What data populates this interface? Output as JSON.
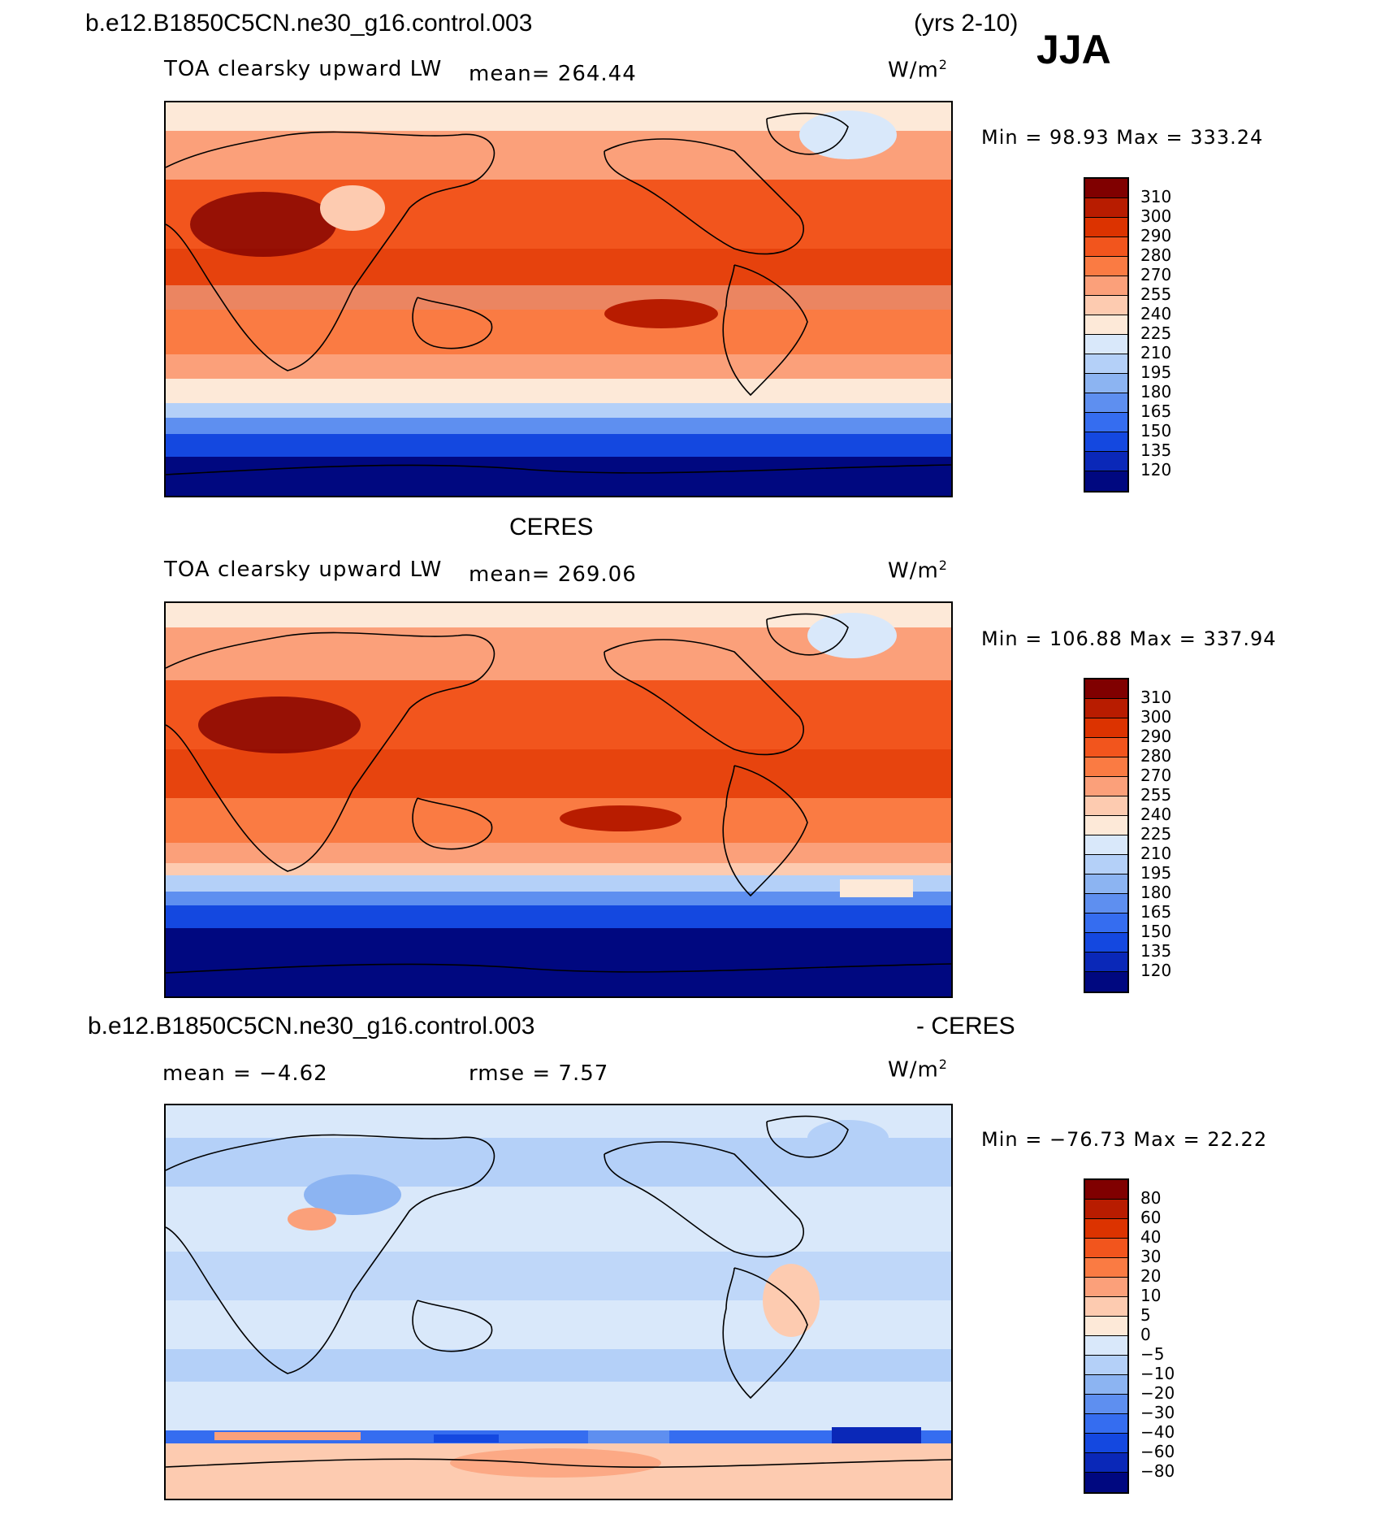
{
  "header": {
    "case_name": "b.e12.B1850C5CN.ne30_g16.control.003",
    "years": "(yrs 2-10)",
    "season": "JJA"
  },
  "panel1": {
    "title": "",
    "variable": "TOA clearsky upward LW",
    "mean_text": "mean= 264.44",
    "units": "W/m",
    "units_sup": "2",
    "minmax": "Min =   98.93 Max = 333.24",
    "colorbar": {
      "labels": [
        "310",
        "300",
        "290",
        "280",
        "270",
        "255",
        "240",
        "225",
        "210",
        "195",
        "180",
        "165",
        "150",
        "135",
        "120"
      ],
      "colors": [
        "#800000",
        "#b81c00",
        "#dc3300",
        "#f2551d",
        "#fa7b43",
        "#fba07a",
        "#fdcbb0",
        "#fde9d8",
        "#d9e8fa",
        "#b4d0f8",
        "#8cb4f2",
        "#5e8ff0",
        "#356df0",
        "#1448e0",
        "#0a28b8",
        "#000880"
      ]
    }
  },
  "panel2": {
    "title": "CERES",
    "variable": "TOA clearsky upward LW",
    "mean_text": "mean= 269.06",
    "units": "W/m",
    "units_sup": "2",
    "minmax": "Min = 106.88 Max = 337.94",
    "colorbar": {
      "labels": [
        "310",
        "300",
        "290",
        "280",
        "270",
        "255",
        "240",
        "225",
        "210",
        "195",
        "180",
        "165",
        "150",
        "135",
        "120"
      ],
      "colors": [
        "#800000",
        "#b81c00",
        "#dc3300",
        "#f2551d",
        "#fa7b43",
        "#fba07a",
        "#fdcbb0",
        "#fde9d8",
        "#d9e8fa",
        "#b4d0f8",
        "#8cb4f2",
        "#5e8ff0",
        "#356df0",
        "#1448e0",
        "#0a28b8",
        "#000880"
      ]
    }
  },
  "panel3": {
    "title_left": "b.e12.B1850C5CN.ne30_g16.control.003",
    "title_right": "- CERES",
    "mean_text": "mean =   −4.62",
    "rmse_text": "rmse =    7.57",
    "units": "W/m",
    "units_sup": "2",
    "minmax": "Min = −76.73 Max =   22.22",
    "colorbar": {
      "labels": [
        "80",
        "60",
        "40",
        "30",
        "20",
        "10",
        "5",
        "0",
        "−5",
        "−10",
        "−20",
        "−30",
        "−40",
        "−60",
        "−80"
      ],
      "colors": [
        "#800000",
        "#b81c00",
        "#dc3300",
        "#f2551d",
        "#fa7b43",
        "#fba07a",
        "#fdcbb0",
        "#fde9d8",
        "#d9e8fa",
        "#b4d0f8",
        "#8cb4f2",
        "#5e8ff0",
        "#356df0",
        "#1448e0",
        "#0a28b8",
        "#000880"
      ]
    }
  }
}
